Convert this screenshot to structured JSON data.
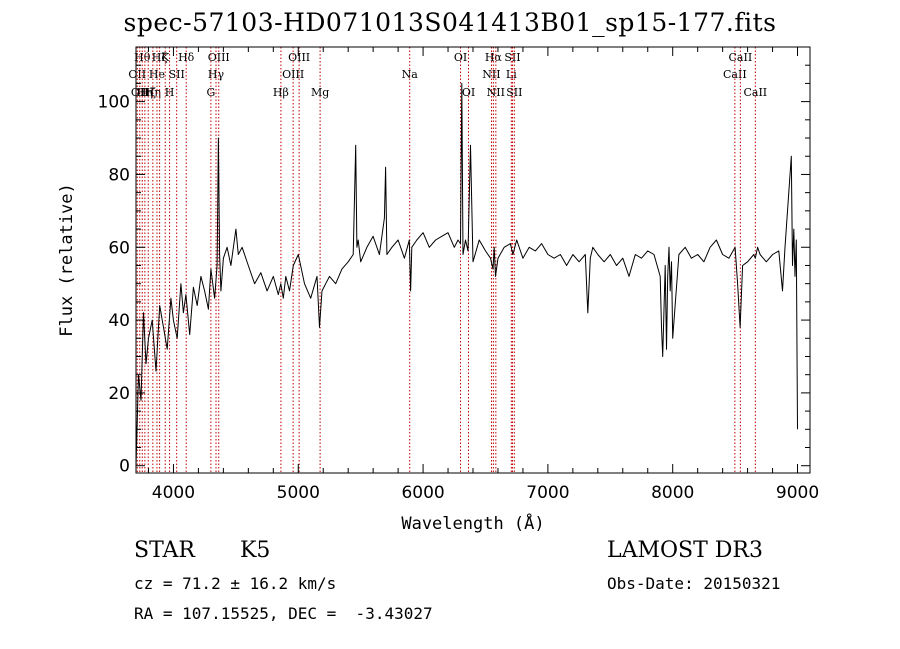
{
  "chart_data": {
    "type": "line",
    "title": "spec-57103-HD071013S041413B01_sp15-177.fits",
    "xlabel": "Wavelength (Å)",
    "ylabel": "Flux (relative)",
    "xlim": [
      3700,
      9100
    ],
    "ylim": [
      -2,
      115
    ],
    "x_ticks": [
      4000,
      5000,
      6000,
      7000,
      8000,
      9000
    ],
    "y_ticks": [
      0,
      20,
      40,
      60,
      80,
      100
    ],
    "grid": false,
    "series": [
      {
        "line_color": "#000000",
        "x": [
          3700,
          3720,
          3740,
          3760,
          3780,
          3800,
          3830,
          3860,
          3890,
          3920,
          3950,
          3980,
          4000,
          4030,
          4060,
          4080,
          4100,
          4130,
          4160,
          4190,
          4220,
          4250,
          4280,
          4300,
          4330,
          4350,
          4360,
          4370,
          4380,
          4400,
          4430,
          4460,
          4500,
          4520,
          4550,
          4600,
          4650,
          4700,
          4750,
          4800,
          4840,
          4860,
          4880,
          4900,
          4930,
          4960,
          5000,
          5050,
          5100,
          5150,
          5170,
          5190,
          5220,
          5250,
          5300,
          5350,
          5400,
          5440,
          5460,
          5470,
          5480,
          5500,
          5550,
          5600,
          5650,
          5690,
          5700,
          5710,
          5750,
          5800,
          5850,
          5890,
          5900,
          5910,
          5950,
          6000,
          6050,
          6100,
          6150,
          6200,
          6250,
          6280,
          6300,
          6310,
          6320,
          6340,
          6360,
          6380,
          6400,
          6450,
          6500,
          6540,
          6560,
          6570,
          6580,
          6600,
          6650,
          6700,
          6720,
          6750,
          6800,
          6850,
          6900,
          6950,
          7000,
          7050,
          7100,
          7150,
          7200,
          7250,
          7300,
          7320,
          7340,
          7360,
          7400,
          7450,
          7500,
          7550,
          7600,
          7650,
          7700,
          7750,
          7800,
          7850,
          7900,
          7910,
          7920,
          7940,
          7950,
          7960,
          7970,
          7980,
          7990,
          8000,
          8050,
          8100,
          8150,
          8200,
          8250,
          8300,
          8350,
          8400,
          8450,
          8500,
          8520,
          8540,
          8560,
          8600,
          8650,
          8662,
          8680,
          8700,
          8750,
          8800,
          8850,
          8880,
          8900,
          8950,
          8960,
          8970,
          8980,
          8990,
          9000
        ],
        "y": [
          0,
          25,
          18,
          42,
          28,
          35,
          40,
          26,
          44,
          38,
          32,
          46,
          40,
          35,
          50,
          42,
          47,
          36,
          49,
          44,
          52,
          48,
          43,
          54,
          46,
          55,
          90,
          58,
          48,
          57,
          60,
          55,
          65,
          58,
          60,
          55,
          50,
          53,
          48,
          52,
          47,
          50,
          46,
          52,
          48,
          55,
          58,
          50,
          46,
          52,
          38,
          48,
          50,
          52,
          50,
          54,
          56,
          58,
          88,
          60,
          62,
          56,
          60,
          63,
          58,
          68,
          82,
          58,
          60,
          62,
          57,
          62,
          48,
          60,
          62,
          64,
          60,
          62,
          63,
          64,
          60,
          62,
          61,
          105,
          58,
          62,
          59,
          88,
          56,
          62,
          59,
          57,
          54,
          60,
          52,
          57,
          60,
          61,
          58,
          62,
          57,
          60,
          59,
          61,
          58,
          57,
          58,
          55,
          58,
          56,
          58,
          42,
          57,
          60,
          58,
          56,
          58,
          55,
          57,
          52,
          58,
          57,
          59,
          58,
          52,
          38,
          30,
          55,
          32,
          52,
          60,
          48,
          56,
          35,
          58,
          60,
          57,
          58,
          56,
          60,
          62,
          58,
          57,
          60,
          50,
          38,
          55,
          56,
          58,
          57,
          60,
          58,
          56,
          58,
          59,
          48,
          60,
          85,
          55,
          65,
          52,
          62,
          10
        ]
      }
    ],
    "line_markers": [
      {
        "x": 3710,
        "label": "OII",
        "row": 1
      },
      {
        "x": 3730,
        "label": "OII",
        "row": 2
      },
      {
        "x": 3750,
        "label": "Hθ",
        "row": 0
      },
      {
        "x": 3771,
        "label": "Hη",
        "row": 2
      },
      {
        "x": 3798,
        "label": "Hζ",
        "row": 2
      },
      {
        "x": 3835,
        "label": "Hη",
        "row": 2
      },
      {
        "x": 3868,
        "label": "He",
        "row": 1
      },
      {
        "x": 3889,
        "label": "Hζ",
        "row": 0
      },
      {
        "x": 3934,
        "label": "K",
        "row": 0
      },
      {
        "x": 3969,
        "label": "H",
        "row": 2
      },
      {
        "x": 4026,
        "label": "SII",
        "row": 1
      },
      {
        "x": 4102,
        "label": "Hδ",
        "row": 0
      },
      {
        "x": 4300,
        "label": "G",
        "row": 2
      },
      {
        "x": 4341,
        "label": "Hγ",
        "row": 1
      },
      {
        "x": 4363,
        "label": "OIII",
        "row": 0
      },
      {
        "x": 4861,
        "label": "Hβ",
        "row": 2
      },
      {
        "x": 4959,
        "label": "OIII",
        "row": 1
      },
      {
        "x": 5007,
        "label": "OIII",
        "row": 0
      },
      {
        "x": 5175,
        "label": "Mg",
        "row": 2
      },
      {
        "x": 5893,
        "label": "Na",
        "row": 1
      },
      {
        "x": 6300,
        "label": "OI",
        "row": 0
      },
      {
        "x": 6364,
        "label": "OI",
        "row": 2
      },
      {
        "x": 6548,
        "label": "NII",
        "row": 1
      },
      {
        "x": 6563,
        "label": "Hα",
        "row": 0
      },
      {
        "x": 6583,
        "label": "NII",
        "row": 2
      },
      {
        "x": 6707,
        "label": "Li",
        "row": 1
      },
      {
        "x": 6716,
        "label": "SII",
        "row": 0
      },
      {
        "x": 6731,
        "label": "SII",
        "row": 2
      },
      {
        "x": 8498,
        "label": "CaII",
        "row": 1
      },
      {
        "x": 8542,
        "label": "CaII",
        "row": 0
      },
      {
        "x": 8662,
        "label": "CaII",
        "row": 2
      }
    ],
    "marker_color": "#c00000"
  },
  "info": {
    "object_class": "STAR",
    "subclass": "K5",
    "survey": "LAMOST DR3",
    "redshift": "cz = 71.2 ± 16.2 km/s",
    "obs_date": "Obs-Date: 20150321",
    "coords": "RA = 107.15525, DEC =  -3.43027"
  }
}
